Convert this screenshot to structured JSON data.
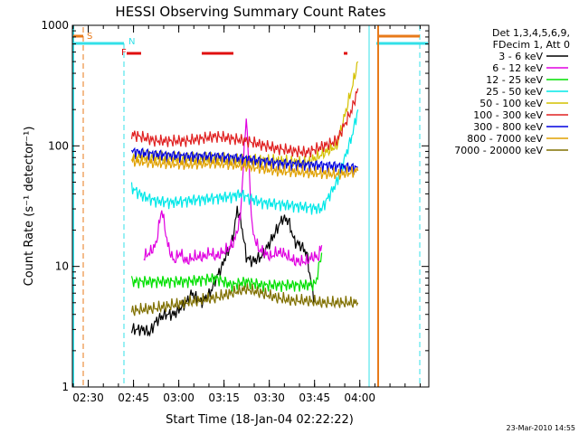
{
  "chart_data": {
    "type": "line",
    "title": "HESSI Observing Summary Count Rates",
    "xlabel": "Start Time (18-Jan-04 02:22:22)",
    "ylabel": "Count Rate (s⁻¹ detector⁻¹)",
    "ylim": [
      1,
      1000
    ],
    "yscale": "log",
    "xlim_minutes": [
      2.37,
      120.5
    ],
    "x_ticks": [
      "02:30",
      "02:45",
      "03:00",
      "03:15",
      "03:30",
      "03:45",
      "04:00"
    ],
    "y_ticks": [
      "1",
      "10",
      "100",
      "1000"
    ],
    "legend_header": [
      "Det 1,3,4,5,6,9,",
      "FDecim 1, Att 0"
    ],
    "legend_position": "right",
    "footer": "23-Mar-2010 14:55",
    "flags": {
      "S": {
        "label": "S",
        "color": "#e87a1a"
      },
      "N": {
        "label": "N",
        "color": "#33e0e8"
      },
      "F": {
        "label": "F",
        "color": "#e01010"
      }
    },
    "series": [
      {
        "name": "3 - 6 keV",
        "color": "#000000",
        "x": [
          22,
          24,
          26,
          28,
          30,
          33,
          36,
          40,
          42,
          45,
          48,
          50,
          52,
          53,
          55,
          56,
          57,
          58,
          59,
          60,
          62,
          65,
          68,
          70,
          72,
          74,
          76,
          78,
          80,
          82,
          83
        ],
        "y": [
          3,
          3,
          3,
          2.8,
          3.5,
          4,
          4,
          5,
          6,
          5,
          6,
          8,
          10,
          12,
          15,
          20,
          30,
          25,
          18,
          12,
          11,
          12,
          16,
          20,
          25,
          24,
          16,
          15,
          13,
          6,
          5
        ]
      },
      {
        "name": "6 - 12 keV",
        "color": "#e000e0",
        "x": [
          26,
          28,
          30,
          32,
          34,
          36,
          38,
          40,
          43,
          46,
          48,
          50,
          52,
          54,
          56,
          58,
          60,
          62,
          64,
          66,
          68,
          70,
          72,
          74,
          76,
          78,
          80,
          82,
          84,
          85
        ],
        "y": [
          12,
          13,
          15,
          30,
          15,
          11,
          13,
          11,
          12,
          12,
          13,
          12,
          13,
          14,
          16,
          25,
          180,
          20,
          14,
          13,
          12,
          13,
          13,
          12,
          11,
          11,
          11,
          12,
          12,
          15
        ]
      },
      {
        "name": "12 - 25 keV",
        "color": "#00e000",
        "x": [
          22,
          30,
          40,
          50,
          55,
          60,
          65,
          70,
          75,
          80,
          83,
          85
        ],
        "y": [
          7.5,
          7.5,
          7.5,
          8,
          7,
          7.5,
          7,
          7,
          7,
          7,
          7.2,
          13
        ]
      },
      {
        "name": "25 - 50 keV",
        "color": "#00e8e8",
        "x": [
          22,
          26,
          30,
          35,
          40,
          45,
          50,
          55,
          58,
          60,
          62,
          65,
          70,
          75,
          80,
          85,
          90,
          95,
          97
        ],
        "y": [
          45,
          38,
          35,
          34,
          35,
          36,
          37,
          38,
          40,
          38,
          36,
          34,
          33,
          32,
          31,
          30,
          50,
          120,
          200
        ]
      },
      {
        "name": "50 - 100 keV",
        "color": "#d4c000",
        "x": [
          22,
          30,
          40,
          50,
          60,
          70,
          80,
          90,
          95,
          97
        ],
        "y": [
          82,
          80,
          78,
          78,
          75,
          75,
          72,
          100,
          300,
          500
        ]
      },
      {
        "name": "100 - 300 keV",
        "color": "#e02020",
        "x": [
          22,
          30,
          40,
          50,
          60,
          70,
          80,
          90,
          95,
          97
        ],
        "y": [
          125,
          110,
          110,
          120,
          110,
          95,
          88,
          110,
          200,
          300
        ]
      },
      {
        "name": "300 - 800 keV",
        "color": "#0000e0",
        "x": [
          22,
          30,
          40,
          50,
          60,
          70,
          80,
          90,
          95,
          97
        ],
        "y": [
          90,
          85,
          82,
          82,
          78,
          72,
          70,
          68,
          66,
          66
        ]
      },
      {
        "name": "800 - 7000 keV",
        "color": "#e0a000",
        "x": [
          22,
          30,
          40,
          50,
          60,
          70,
          80,
          90,
          95,
          97
        ],
        "y": [
          75,
          72,
          70,
          72,
          68,
          62,
          60,
          58,
          60,
          62
        ]
      },
      {
        "name": "7000 - 20000 keV",
        "color": "#807000",
        "x": [
          22,
          30,
          40,
          50,
          55,
          60,
          65,
          70,
          75,
          80,
          85,
          90,
          95,
          97
        ],
        "y": [
          4.3,
          4.5,
          5,
          5.5,
          6,
          6.5,
          6,
          5.5,
          5.2,
          5.2,
          5,
          5,
          5,
          5
        ]
      }
    ]
  }
}
